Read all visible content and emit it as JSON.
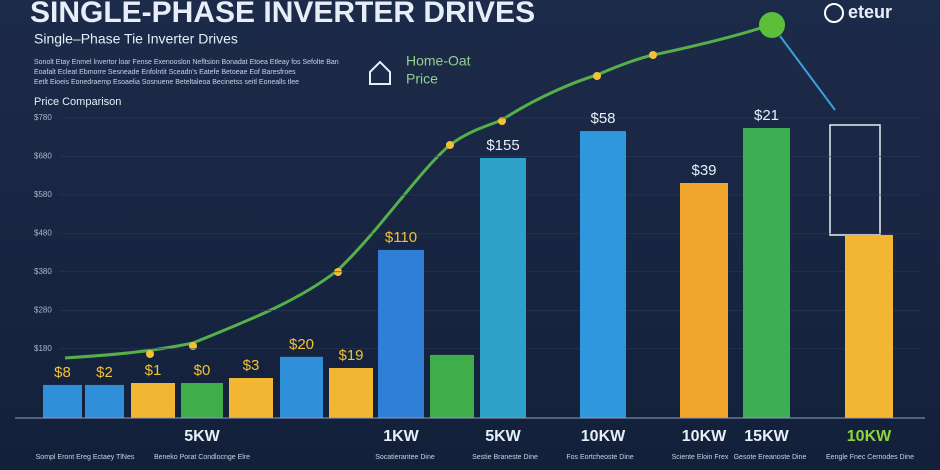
{
  "chart_data": {
    "type": "bar",
    "title": "SINGLE-PHASE INVERTER DRIVES",
    "subtitle": "Single–Phase Tie Inverter Drives",
    "description": [
      "Sonolt Etay Enmel lnvertor loar Fense Exenooslon Nefltsion Bonadat Etoea Etleay fos Sefolte Ban",
      "Eoafalt Ecleat Ebmorre Sesneade Enfolntit Sceadn's Eatefe Betoeae Eof Baresfroes",
      "Eetlt Eioeis Eonedraemp Esoaelia Sosnuene Beteltaleoa Becinetss seitl Eonealls tlee"
    ],
    "ylabel": "Price Comparison",
    "callout": [
      "Home-Oat",
      "Price"
    ],
    "logo": "eteur",
    "categories": [
      null,
      null,
      null,
      "5KW",
      null,
      null,
      null,
      "1KW",
      null,
      "5KW",
      "10KW",
      "10KW",
      "15KW",
      "10KW"
    ],
    "values": [
      86,
      86,
      91,
      91,
      104,
      159,
      130,
      437,
      164,
      676,
      746,
      611,
      754,
      476
    ],
    "colors": [
      "#2f8fd8",
      "#2f8fd8",
      "#f2b632",
      "#3fae4a",
      "#f2b632",
      "#2f8fd8",
      "#f2b632",
      "#2f7fd6",
      "#3fae4a",
      "#2ea1c8",
      "#2f97dc",
      "#f0a52c",
      "#3daf52",
      "#f2b632"
    ],
    "annotations": [
      "$8",
      "$2",
      "$1",
      "$0",
      "$3",
      "$20",
      "$19",
      "$110",
      null,
      "$155",
      "$58",
      "$39",
      "$21",
      null
    ],
    "footnotes": [
      "Sompl Eront Ereg Ectaey TlNes",
      "Beneko Porat Condlocnge Elre",
      "Socatierantee Dine",
      "Sestie Braneste Dine",
      "Fos Eortcheoste Dine",
      "Sciente Eloin Frex",
      "Gesote Ereanoste Dine",
      "Eengle Fnec Cernodes Dine"
    ],
    "ylim": [
      0,
      780
    ],
    "yticks": [
      {
        "value": 180,
        "label": "$180"
      },
      {
        "value": 280,
        "label": "$280"
      },
      {
        "value": 380,
        "label": "$380"
      },
      {
        "value": 480,
        "label": "$480"
      },
      {
        "value": 580,
        "label": "$580"
      },
      {
        "value": 680,
        "label": "$680"
      },
      {
        "value": 780,
        "label": "$780"
      }
    ],
    "grid": true
  }
}
